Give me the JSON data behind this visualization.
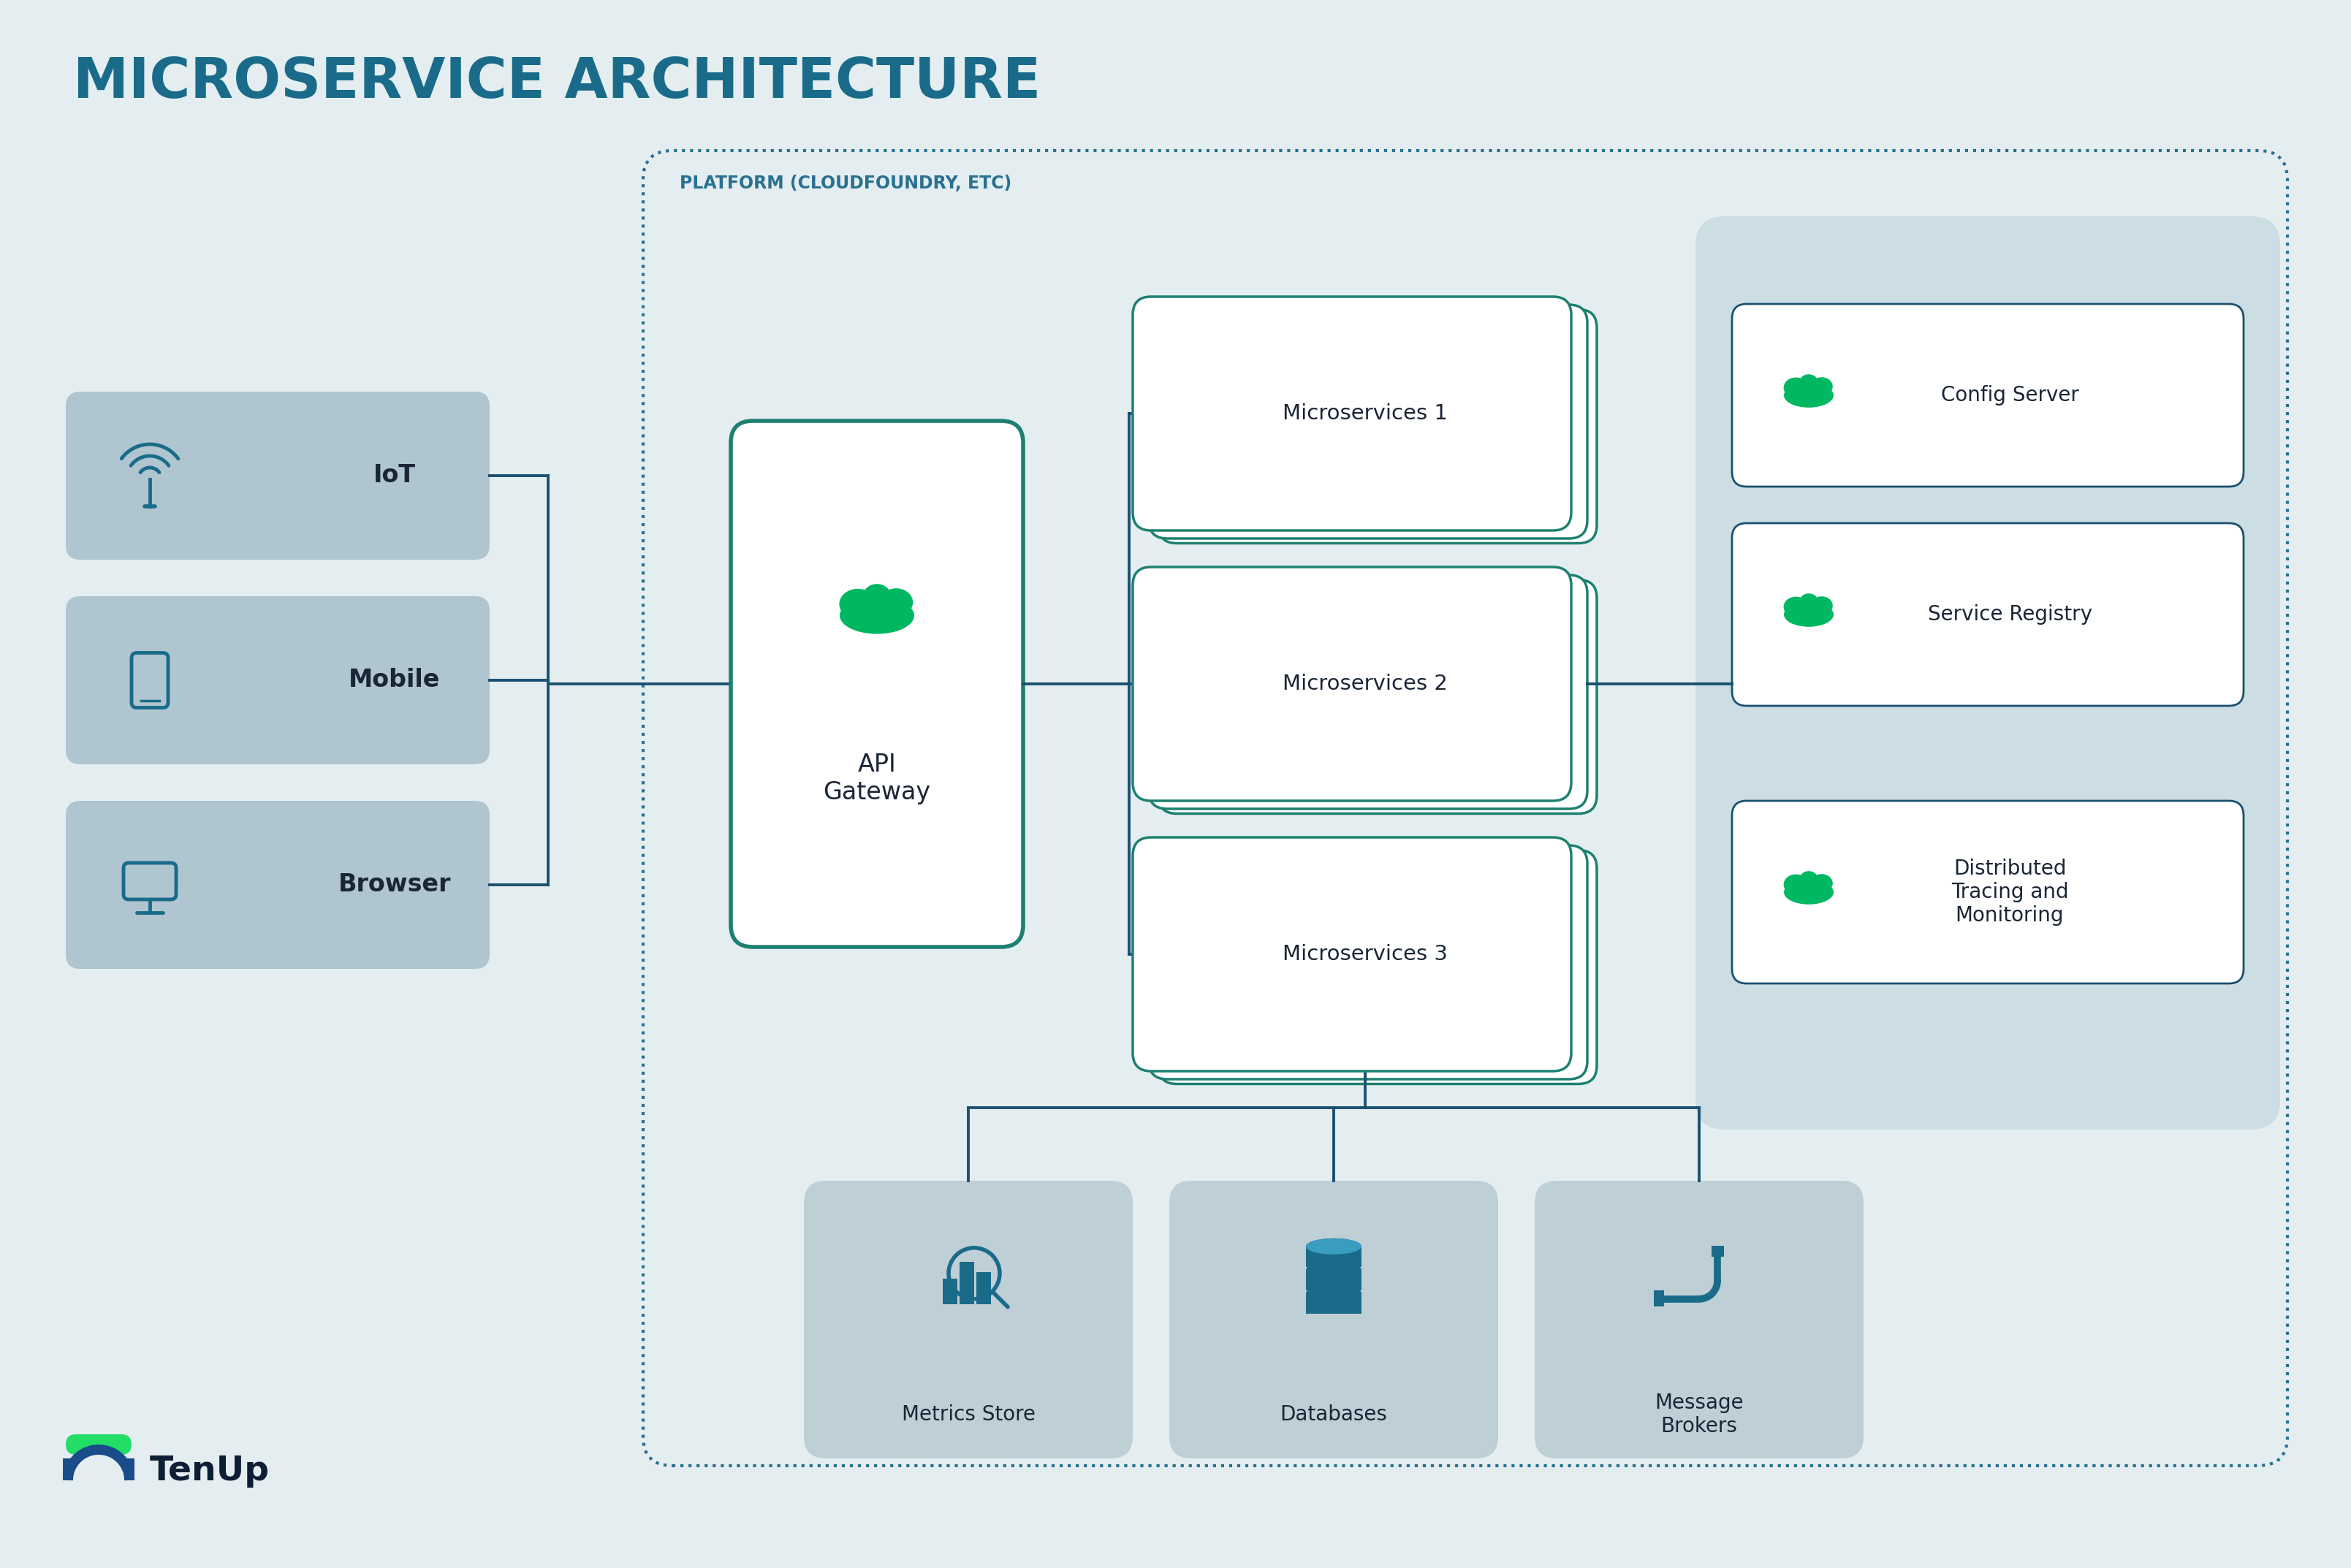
{
  "title": "MICROSERVICE ARCHITECTURE",
  "title_color": "#1a6b8a",
  "bg_color": "#e4eef0",
  "platform_label": "PLATFORM (CLOUDFOUNDRY, ETC)",
  "platform_border_color": "#2a7090",
  "client_box_color": "#afc5cf",
  "client_labels": [
    "IoT",
    "Mobile",
    "Browser"
  ],
  "api_gateway_label": "API\nGateway",
  "ms_labels": [
    "Microservices 1",
    "Microservices 2",
    "Microservices 3"
  ],
  "service_labels": [
    "Config Server",
    "Service Registry",
    "Distributed\nTracing and\nMonitoring"
  ],
  "bottom_labels": [
    "Metrics Store",
    "Databases",
    "Message\nBrokers"
  ],
  "box_white": "#ffffff",
  "box_gray": "#bfcfd6",
  "service_panel_color": "#ccdde3",
  "green_color": "#00b861",
  "line_color": "#1a5070",
  "text_dark": "#1a2535",
  "text_teal": "#1a6b8a",
  "gw_border": "#1d8070",
  "ms_border": "#1d8070"
}
